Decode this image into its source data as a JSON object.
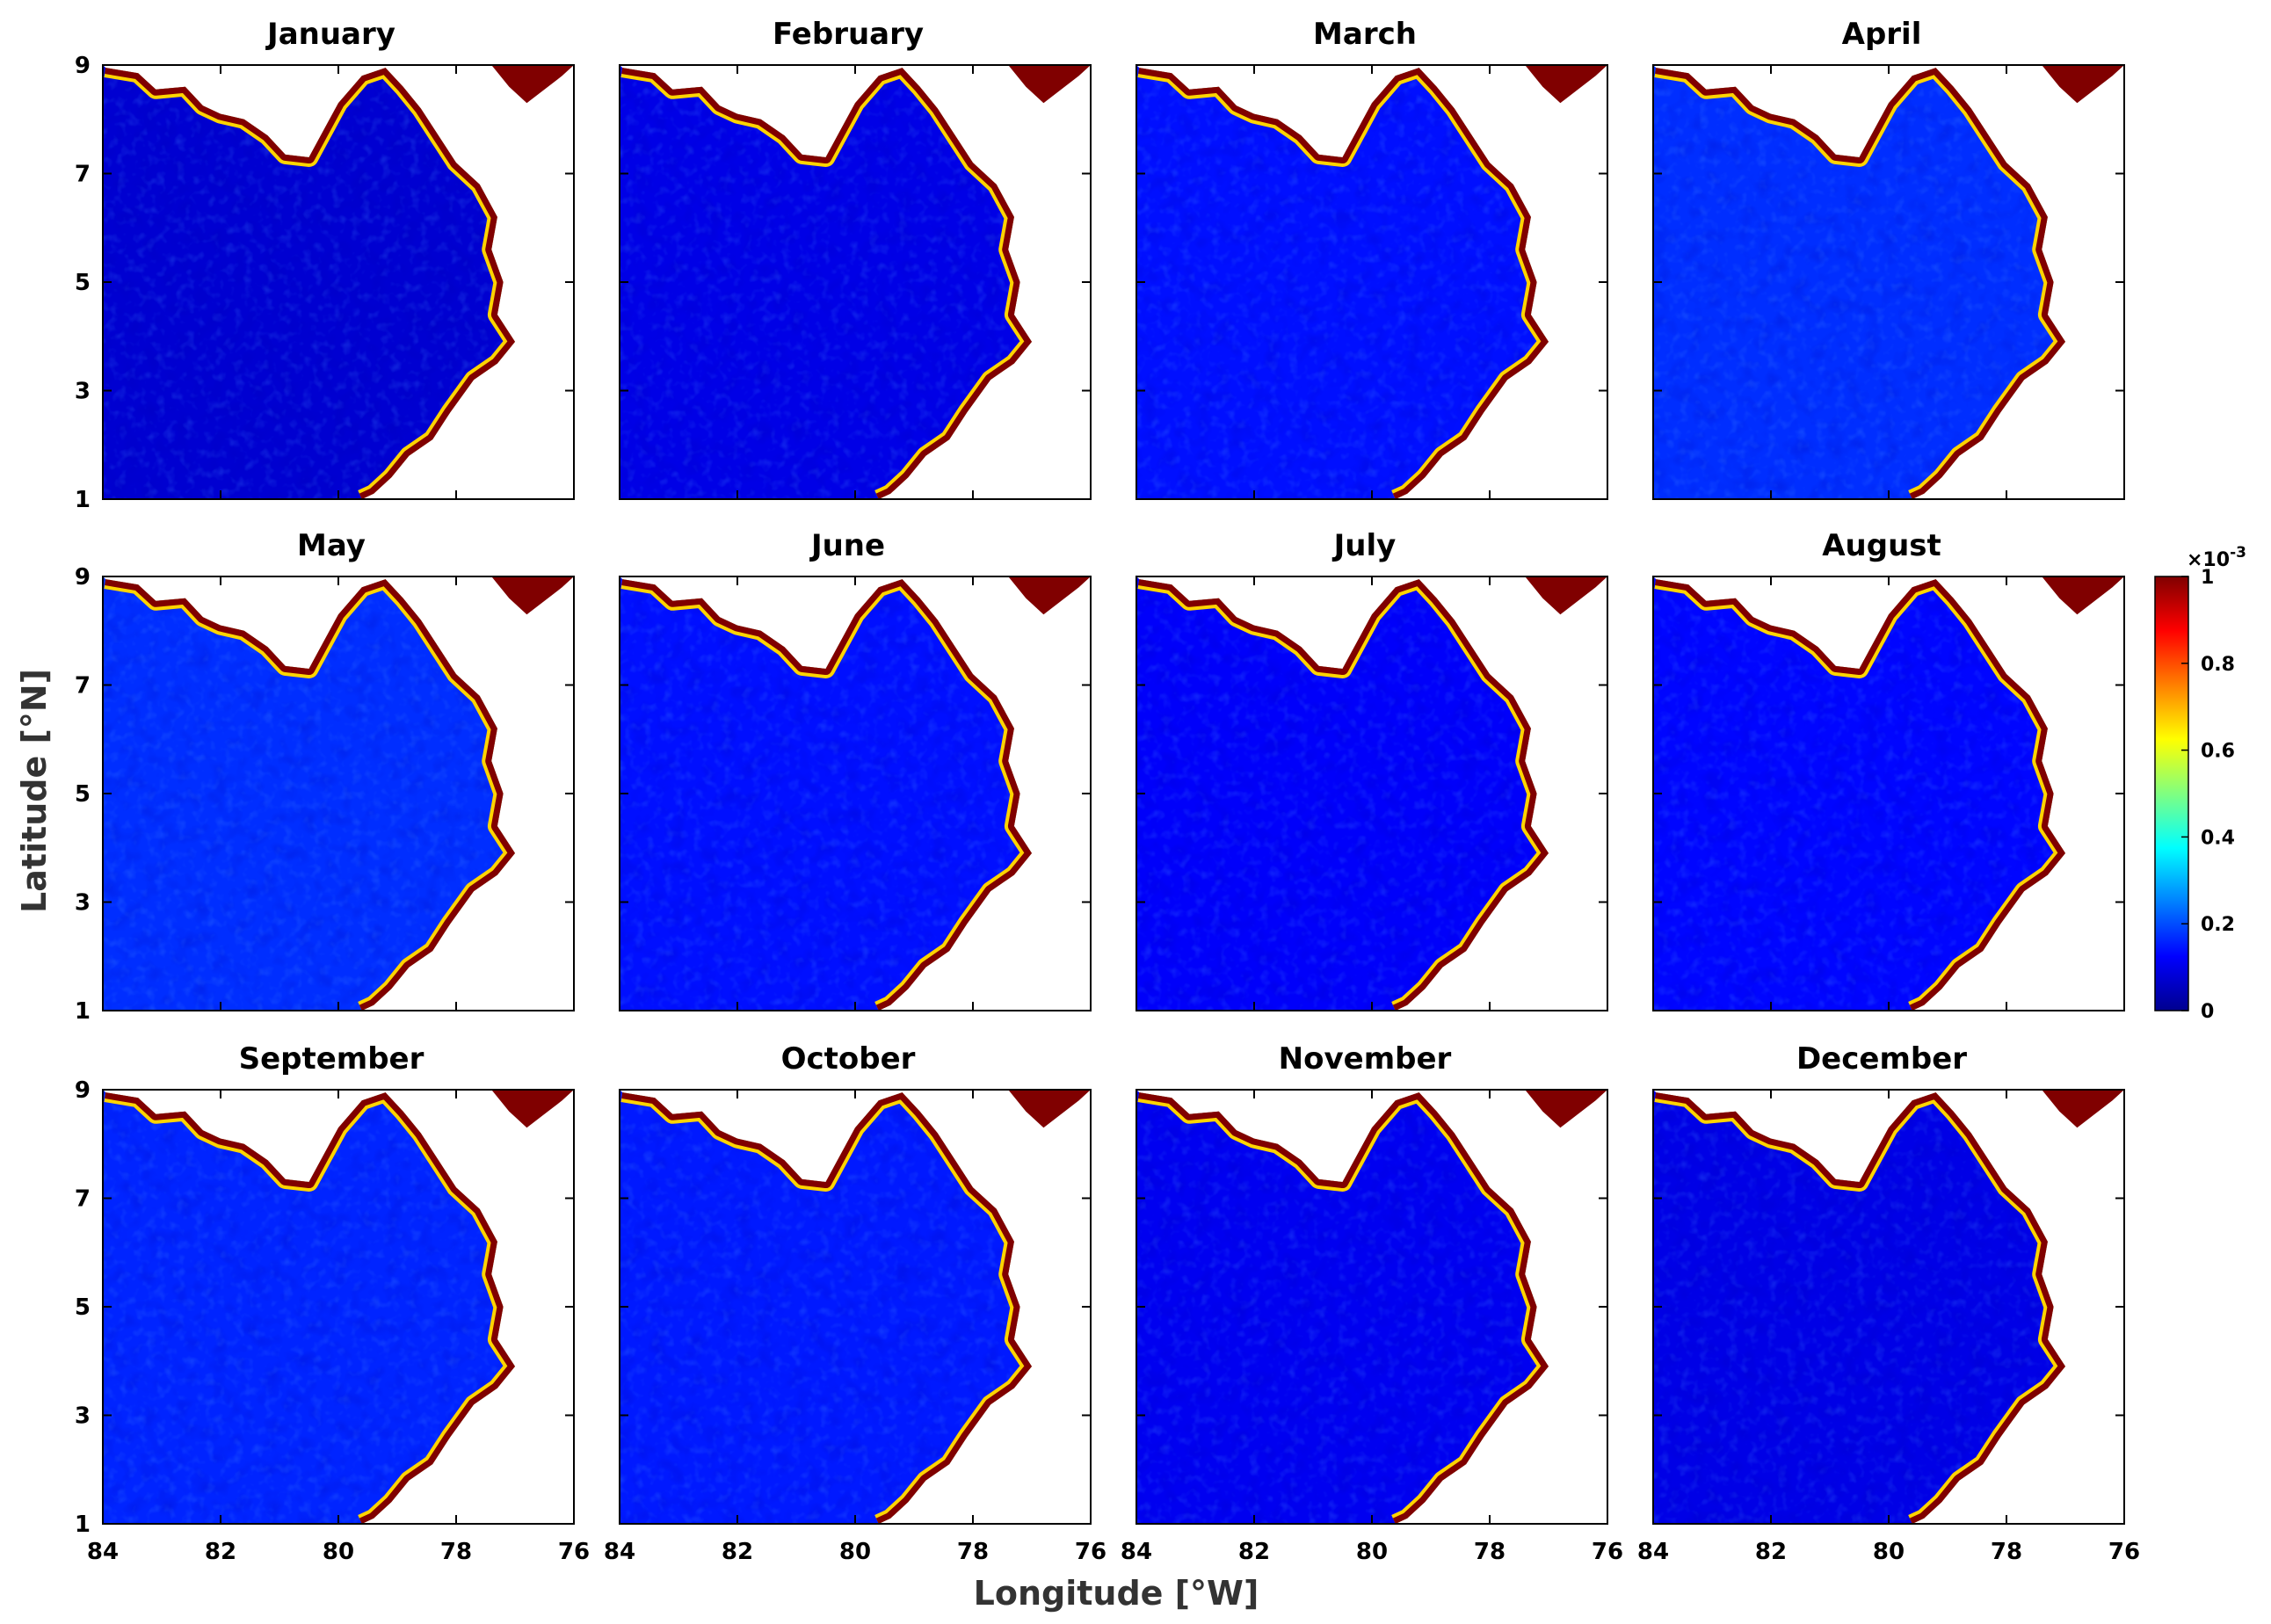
{
  "chart_data": {
    "type": "heatmap",
    "layout": {
      "rows": 3,
      "cols": 4
    },
    "panels": [
      {
        "title": "January"
      },
      {
        "title": "February"
      },
      {
        "title": "March"
      },
      {
        "title": "April"
      },
      {
        "title": "May"
      },
      {
        "title": "June"
      },
      {
        "title": "July"
      },
      {
        "title": "August"
      },
      {
        "title": "September"
      },
      {
        "title": "October"
      },
      {
        "title": "November"
      },
      {
        "title": "December"
      }
    ],
    "panel_mean_level": [
      0.08,
      0.1,
      0.14,
      0.17,
      0.17,
      0.14,
      0.12,
      0.13,
      0.16,
      0.15,
      0.11,
      0.1
    ],
    "xlabel": "Longitude [°W]",
    "ylabel": "Latitude [°N]",
    "xlim": [
      84,
      76
    ],
    "ylim": [
      1,
      9
    ],
    "x_ticks": [
      "84",
      "82",
      "80",
      "78",
      "76"
    ],
    "y_ticks": [
      "1",
      "3",
      "5",
      "7",
      "9"
    ],
    "colorbar": {
      "multiplier": "×10",
      "exponent": "-3",
      "range": [
        0,
        1
      ],
      "ticks": [
        "0",
        "0.2",
        "0.4",
        "0.6",
        "0.8",
        "1"
      ],
      "colormap": "jet"
    },
    "land_color": "#ffffff",
    "coast_color": "#800000"
  }
}
